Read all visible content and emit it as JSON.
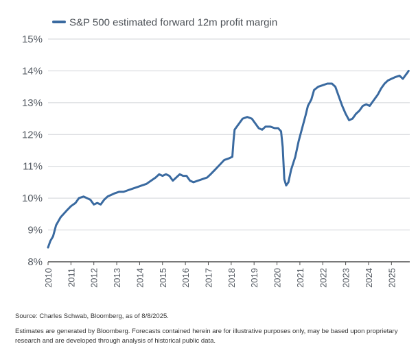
{
  "chart_data": {
    "type": "line",
    "series": [
      {
        "name": "S&P 500 estimated forward 12m profit margin",
        "color": "#3a6aa0",
        "points": [
          [
            2010.0,
            8.45
          ],
          [
            2010.1,
            8.65
          ],
          [
            2010.22,
            8.8
          ],
          [
            2010.35,
            9.15
          ],
          [
            2010.55,
            9.4
          ],
          [
            2010.8,
            9.6
          ],
          [
            2011.0,
            9.75
          ],
          [
            2011.2,
            9.85
          ],
          [
            2011.35,
            10.0
          ],
          [
            2011.55,
            10.05
          ],
          [
            2011.7,
            10.0
          ],
          [
            2011.85,
            9.95
          ],
          [
            2012.0,
            9.8
          ],
          [
            2012.15,
            9.85
          ],
          [
            2012.3,
            9.8
          ],
          [
            2012.45,
            9.95
          ],
          [
            2012.6,
            10.05
          ],
          [
            2012.75,
            10.1
          ],
          [
            2012.9,
            10.15
          ],
          [
            2013.1,
            10.2
          ],
          [
            2013.3,
            10.2
          ],
          [
            2013.5,
            10.25
          ],
          [
            2013.7,
            10.3
          ],
          [
            2013.9,
            10.35
          ],
          [
            2014.1,
            10.4
          ],
          [
            2014.3,
            10.45
          ],
          [
            2014.5,
            10.55
          ],
          [
            2014.7,
            10.65
          ],
          [
            2014.85,
            10.75
          ],
          [
            2015.0,
            10.7
          ],
          [
            2015.15,
            10.75
          ],
          [
            2015.3,
            10.7
          ],
          [
            2015.45,
            10.55
          ],
          [
            2015.6,
            10.65
          ],
          [
            2015.75,
            10.75
          ],
          [
            2015.9,
            10.7
          ],
          [
            2016.05,
            10.7
          ],
          [
            2016.2,
            10.55
          ],
          [
            2016.35,
            10.5
          ],
          [
            2016.55,
            10.55
          ],
          [
            2016.75,
            10.6
          ],
          [
            2016.95,
            10.65
          ],
          [
            2017.1,
            10.75
          ],
          [
            2017.3,
            10.9
          ],
          [
            2017.5,
            11.05
          ],
          [
            2017.7,
            11.2
          ],
          [
            2017.9,
            11.25
          ],
          [
            2018.05,
            11.3
          ],
          [
            2018.1,
            11.8
          ],
          [
            2018.15,
            12.15
          ],
          [
            2018.3,
            12.3
          ],
          [
            2018.5,
            12.5
          ],
          [
            2018.7,
            12.55
          ],
          [
            2018.9,
            12.5
          ],
          [
            2019.05,
            12.35
          ],
          [
            2019.2,
            12.2
          ],
          [
            2019.35,
            12.15
          ],
          [
            2019.5,
            12.25
          ],
          [
            2019.7,
            12.25
          ],
          [
            2019.9,
            12.2
          ],
          [
            2020.05,
            12.2
          ],
          [
            2020.18,
            12.1
          ],
          [
            2020.25,
            11.6
          ],
          [
            2020.32,
            10.6
          ],
          [
            2020.4,
            10.4
          ],
          [
            2020.5,
            10.5
          ],
          [
            2020.62,
            10.9
          ],
          [
            2020.8,
            11.3
          ],
          [
            2020.95,
            11.8
          ],
          [
            2021.1,
            12.2
          ],
          [
            2021.25,
            12.6
          ],
          [
            2021.35,
            12.9
          ],
          [
            2021.5,
            13.1
          ],
          [
            2021.62,
            13.4
          ],
          [
            2021.8,
            13.5
          ],
          [
            2022.0,
            13.55
          ],
          [
            2022.2,
            13.6
          ],
          [
            2022.4,
            13.6
          ],
          [
            2022.55,
            13.5
          ],
          [
            2022.7,
            13.2
          ],
          [
            2022.85,
            12.9
          ],
          [
            2023.0,
            12.65
          ],
          [
            2023.15,
            12.45
          ],
          [
            2023.3,
            12.5
          ],
          [
            2023.45,
            12.65
          ],
          [
            2023.6,
            12.75
          ],
          [
            2023.75,
            12.9
          ],
          [
            2023.9,
            12.95
          ],
          [
            2024.05,
            12.9
          ],
          [
            2024.2,
            13.05
          ],
          [
            2024.4,
            13.25
          ],
          [
            2024.55,
            13.45
          ],
          [
            2024.7,
            13.6
          ],
          [
            2024.85,
            13.7
          ],
          [
            2025.0,
            13.75
          ],
          [
            2025.15,
            13.8
          ],
          [
            2025.35,
            13.85
          ],
          [
            2025.5,
            13.75
          ],
          [
            2025.6,
            13.85
          ],
          [
            2025.7,
            13.95
          ],
          [
            2025.75,
            14.0
          ]
        ]
      }
    ],
    "xlim": [
      2010,
      2025.8
    ],
    "ylim": [
      8,
      15
    ],
    "x_ticks": [
      2010,
      2011,
      2012,
      2013,
      2014,
      2015,
      2016,
      2017,
      2018,
      2019,
      2020,
      2021,
      2022,
      2023,
      2024,
      2025
    ],
    "x_tick_labels": [
      "2010",
      "2011",
      "2012",
      "2013",
      "2014",
      "2015",
      "2016",
      "2017",
      "2018",
      "2019",
      "2020",
      "2021",
      "2022",
      "2023",
      "2024",
      "2025"
    ],
    "y_ticks": [
      8,
      9,
      10,
      11,
      12,
      13,
      14,
      15
    ],
    "y_tick_labels": [
      "8%",
      "9%",
      "10%",
      "11%",
      "12%",
      "13%",
      "14%",
      "15%"
    ],
    "grid": true,
    "legend_position": "top-left",
    "title": "",
    "xlabel": "",
    "ylabel": ""
  },
  "colors": {
    "line": "#3a6aa0",
    "grid": "#d0d3d7",
    "axis": "#4d4d4d",
    "tick_text": "#555b63"
  },
  "footer": {
    "source": "Source: Charles Schwab, Bloomberg, as of 8/8/2025.",
    "disclaimer": "Estimates are generated by Bloomberg. Forecasts contained herein are for illustrative purposes only, may be based upon proprietary research and are developed through analysis of historical public data."
  }
}
